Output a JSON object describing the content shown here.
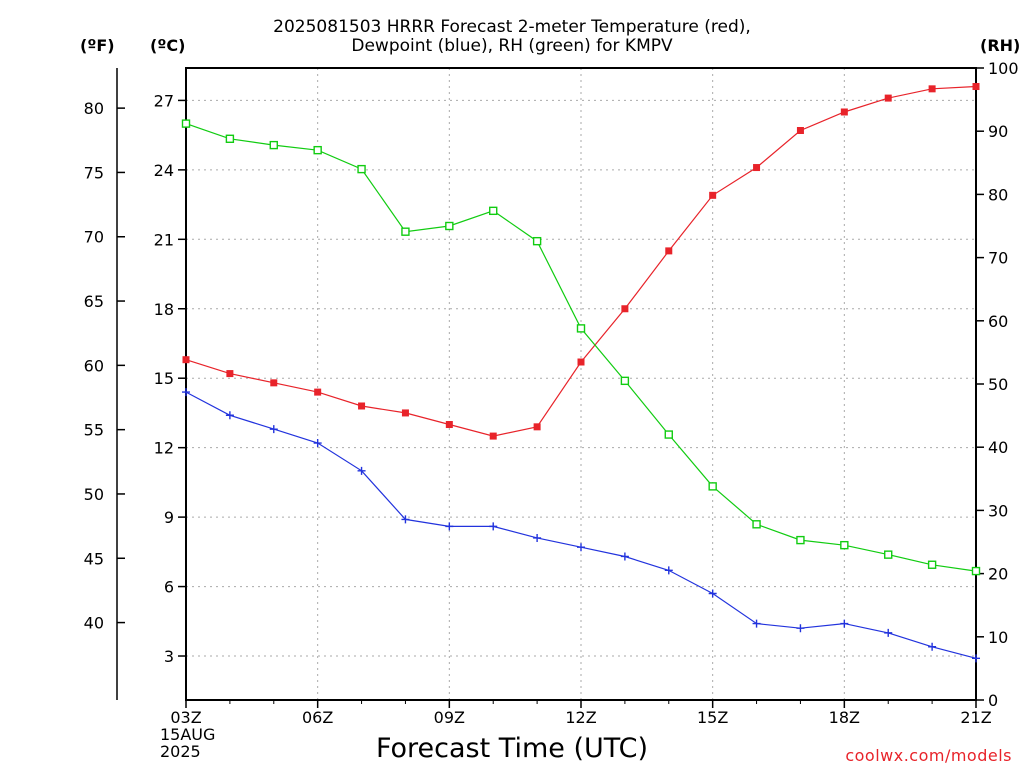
{
  "title": {
    "line1": "2025081503 HRRR Forecast 2-meter Temperature (red),",
    "line2": "Dewpoint (blue), RH (green) for KMPV"
  },
  "units": {
    "fahrenheit": "(ºF)",
    "celsius": "(ºC)",
    "rh": "(RH)"
  },
  "xaxis": {
    "label": "Forecast Time (UTC)",
    "date_line1": "15AUG",
    "date_line2": "2025"
  },
  "credit": "coolwx.com/models",
  "colors": {
    "temperature": "#e8232a",
    "dewpoint": "#2233dd",
    "rh": "#11cc11",
    "grid": "#aaaaaa"
  },
  "chart_data": {
    "type": "line",
    "title": "2025081503 HRRR Forecast 2-meter Temperature (red), Dewpoint (blue), RH (green) for KMPV",
    "xlabel": "Forecast Time (UTC)",
    "x_hours": [
      3,
      4,
      5,
      6,
      7,
      8,
      9,
      10,
      11,
      12,
      13,
      14,
      15,
      16,
      17,
      18,
      19,
      20,
      21
    ],
    "x_ticks": [
      {
        "hour": 3,
        "label": "03Z"
      },
      {
        "hour": 6,
        "label": "06Z"
      },
      {
        "hour": 9,
        "label": "09Z"
      },
      {
        "hour": 12,
        "label": "12Z"
      },
      {
        "hour": 15,
        "label": "15Z"
      },
      {
        "hour": 18,
        "label": "18Z"
      },
      {
        "hour": 21,
        "label": "21Z"
      }
    ],
    "xlim": [
      3,
      21
    ],
    "celsius_axis": {
      "ylim": [
        1.1,
        28.4
      ],
      "ticks": [
        3,
        6,
        9,
        12,
        15,
        18,
        21,
        24,
        27
      ]
    },
    "fahrenheit_axis": {
      "ticks": [
        40,
        45,
        50,
        55,
        60,
        65,
        70,
        75,
        80
      ]
    },
    "rh_axis": {
      "ylim": [
        0,
        100
      ],
      "ticks": [
        0,
        10,
        20,
        30,
        40,
        50,
        60,
        70,
        80,
        90,
        100
      ]
    },
    "grid": true,
    "series": [
      {
        "key": "temperature",
        "axis": "celsius",
        "marker": "filled-square",
        "values": [
          15.8,
          15.2,
          14.8,
          14.4,
          13.8,
          13.5,
          13.0,
          12.5,
          12.9,
          15.7,
          18.0,
          20.5,
          22.9,
          24.1,
          25.7,
          26.5,
          27.1,
          27.5,
          27.6
        ]
      },
      {
        "key": "dewpoint",
        "axis": "celsius",
        "marker": "plus",
        "values": [
          14.4,
          13.4,
          12.8,
          12.2,
          11.0,
          8.9,
          8.6,
          8.6,
          8.1,
          7.7,
          7.3,
          6.7,
          5.7,
          4.4,
          4.2,
          4.4,
          4.0,
          3.4,
          2.9
        ]
      },
      {
        "key": "rh",
        "axis": "rh",
        "marker": "open-square",
        "values": [
          91.2,
          88.8,
          87.8,
          87.0,
          84.0,
          74.1,
          75.0,
          77.4,
          72.6,
          58.8,
          50.5,
          42.0,
          33.8,
          27.8,
          25.3,
          24.5,
          23.0,
          21.4,
          20.4
        ]
      }
    ]
  }
}
